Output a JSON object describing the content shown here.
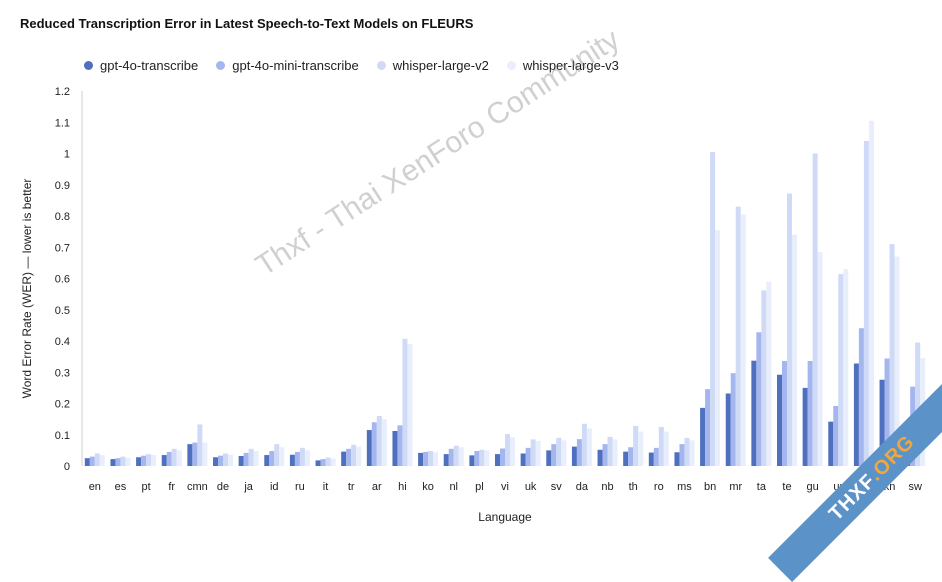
{
  "header": {
    "title": "Reduced Transcription Error in Latest Speech-to-Text Models on FLEURS"
  },
  "legend": [
    {
      "name": "gpt-4o-transcribe",
      "color": "#4f6fbf"
    },
    {
      "name": "gpt-4o-mini-transcribe",
      "color": "#a5b6ef"
    },
    {
      "name": "whisper-large-v2",
      "color": "#cfdaf6"
    },
    {
      "name": "whisper-large-v3",
      "color": "#e8eefb"
    }
  ],
  "watermark": {
    "text": "Thxf - Thai XenForo Community"
  },
  "corner_badge": {
    "left_text": "THXF",
    "accent_text": ".ORG"
  },
  "chart_data": {
    "type": "bar",
    "title": "Reduced Transcription Error in Latest Speech-to-Text Models on FLEURS",
    "xlabel": "Language",
    "ylabel": "Word Error Rate (WER) — lower is better",
    "ylim": [
      0,
      1.2
    ],
    "yticks": [
      "0",
      "0.1",
      "0.2",
      "0.3",
      "0.4",
      "0.5",
      "0.6",
      "0.7",
      "0.8",
      "0.9",
      "1",
      "1.1",
      "1.2"
    ],
    "legend_position": "top-left",
    "grid": false,
    "categories": [
      "en",
      "es",
      "pt",
      "fr",
      "cmn",
      "de",
      "ja",
      "id",
      "ru",
      "it",
      "tr",
      "ar",
      "hi",
      "ko",
      "nl",
      "pl",
      "vi",
      "uk",
      "sv",
      "da",
      "nb",
      "th",
      "ro",
      "ms",
      "bn",
      "mr",
      "ta",
      "te",
      "gu",
      "ur",
      "ml",
      "kn",
      "sw"
    ],
    "series": [
      {
        "name": "gpt-4o-transcribe",
        "color": "#4f6fbf",
        "values": [
          0.025,
          0.022,
          0.028,
          0.035,
          0.07,
          0.028,
          0.032,
          0.035,
          0.036,
          0.018,
          0.046,
          0.115,
          0.112,
          0.042,
          0.038,
          0.034,
          0.038,
          0.04,
          0.05,
          0.062,
          0.052,
          0.046,
          0.043,
          0.044,
          0.186,
          0.232,
          0.337,
          0.292,
          0.25,
          0.142,
          0.328,
          0.276,
          0.14
        ]
      },
      {
        "name": "gpt-4o-mini-transcribe",
        "color": "#a5b6ef",
        "values": [
          0.03,
          0.025,
          0.033,
          0.045,
          0.075,
          0.033,
          0.042,
          0.048,
          0.045,
          0.022,
          0.055,
          0.14,
          0.13,
          0.045,
          0.055,
          0.048,
          0.056,
          0.058,
          0.07,
          0.086,
          0.07,
          0.06,
          0.058,
          0.07,
          0.246,
          0.297,
          0.428,
          0.336,
          0.336,
          0.192,
          0.441,
          0.344,
          0.254
        ]
      },
      {
        "name": "whisper-large-v2",
        "color": "#cfdaf6",
        "values": [
          0.04,
          0.03,
          0.038,
          0.055,
          0.133,
          0.04,
          0.055,
          0.07,
          0.058,
          0.027,
          0.068,
          0.16,
          0.407,
          0.048,
          0.065,
          0.052,
          0.102,
          0.085,
          0.09,
          0.135,
          0.093,
          0.128,
          0.125,
          0.09,
          1.005,
          0.83,
          0.562,
          0.872,
          1.0,
          0.614,
          1.04,
          0.71,
          0.395
        ]
      },
      {
        "name": "whisper-large-v3",
        "color": "#e8eefb",
        "values": [
          0.035,
          0.026,
          0.035,
          0.05,
          0.075,
          0.036,
          0.048,
          0.06,
          0.05,
          0.024,
          0.062,
          0.15,
          0.39,
          0.044,
          0.06,
          0.05,
          0.092,
          0.08,
          0.082,
          0.12,
          0.085,
          0.11,
          0.11,
          0.082,
          0.755,
          0.805,
          0.59,
          0.74,
          0.685,
          0.63,
          1.105,
          0.67,
          0.345
        ]
      }
    ]
  }
}
